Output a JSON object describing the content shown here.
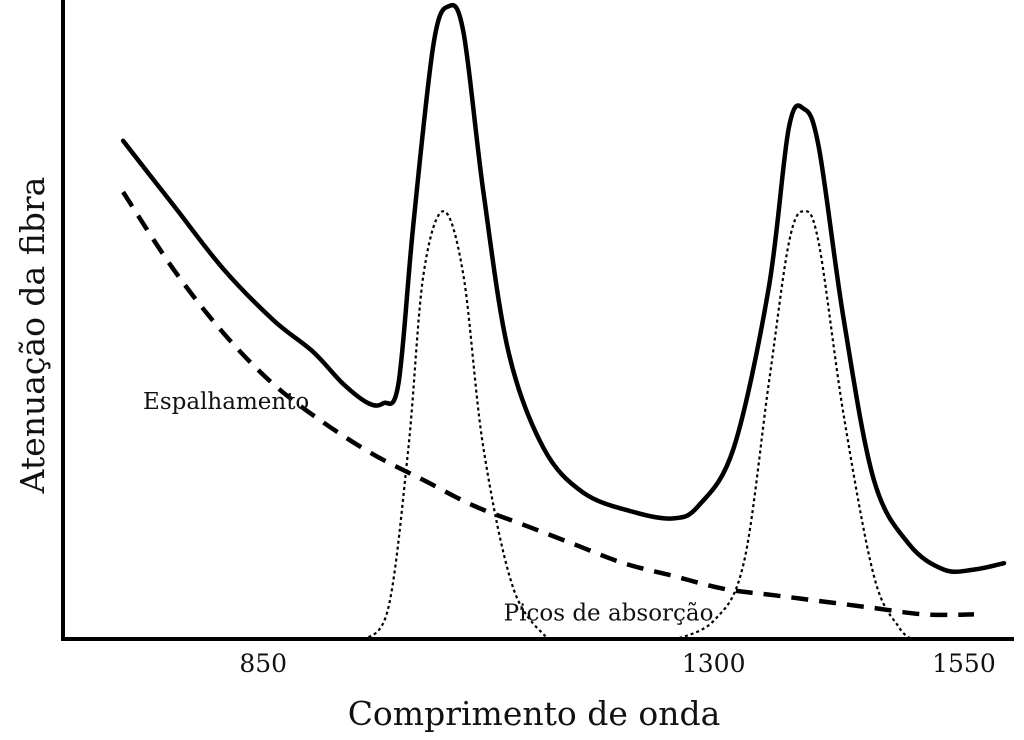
{
  "chart_data": {
    "type": "line",
    "title": "",
    "xlabel": "Comprimento de onda",
    "ylabel": "Atenuação da fibra",
    "x_ticks": [
      {
        "label": "850",
        "x": 850
      },
      {
        "label": "1300",
        "x": 1300
      },
      {
        "label": "1550",
        "x": 1550
      }
    ],
    "xlim": [
      650,
      1600
    ],
    "ylim": [
      0,
      100
    ],
    "grid": false,
    "legend": "none",
    "series": [
      {
        "style": "solid",
        "color": "#000000",
        "points": [
          [
            710,
            78
          ],
          [
            760,
            68
          ],
          [
            810,
            58
          ],
          [
            860,
            50
          ],
          [
            900,
            45
          ],
          [
            930,
            40
          ],
          [
            955,
            37
          ],
          [
            970,
            37
          ],
          [
            985,
            40
          ],
          [
            1000,
            65
          ],
          [
            1020,
            93
          ],
          [
            1035,
            99
          ],
          [
            1050,
            95
          ],
          [
            1070,
            70
          ],
          [
            1095,
            45
          ],
          [
            1130,
            30
          ],
          [
            1170,
            23
          ],
          [
            1220,
            20
          ],
          [
            1260,
            19
          ],
          [
            1285,
            21
          ],
          [
            1320,
            30
          ],
          [
            1355,
            55
          ],
          [
            1375,
            80
          ],
          [
            1390,
            83
          ],
          [
            1405,
            77
          ],
          [
            1430,
            50
          ],
          [
            1460,
            25
          ],
          [
            1495,
            15
          ],
          [
            1530,
            11
          ],
          [
            1560,
            11
          ],
          [
            1590,
            12
          ]
        ]
      },
      {
        "style": "dashed",
        "color": "#000000",
        "points": [
          [
            710,
            70
          ],
          [
            760,
            58
          ],
          [
            810,
            48
          ],
          [
            860,
            40
          ],
          [
            910,
            34
          ],
          [
            960,
            29
          ],
          [
            1010,
            25
          ],
          [
            1060,
            21
          ],
          [
            1110,
            18
          ],
          [
            1160,
            15
          ],
          [
            1210,
            12
          ],
          [
            1260,
            10
          ],
          [
            1310,
            8
          ],
          [
            1360,
            7
          ],
          [
            1410,
            6
          ],
          [
            1460,
            5
          ],
          [
            1510,
            4
          ],
          [
            1560,
            4
          ]
        ]
      },
      {
        "style": "dotted",
        "color": "#000000",
        "points": [
          [
            950,
            0
          ],
          [
            975,
            5
          ],
          [
            995,
            30
          ],
          [
            1010,
            57
          ],
          [
            1030,
            67
          ],
          [
            1050,
            57
          ],
          [
            1070,
            30
          ],
          [
            1100,
            8
          ],
          [
            1135,
            0
          ]
        ]
      },
      {
        "style": "dotted",
        "color": "#000000",
        "points": [
          [
            1260,
            0
          ],
          [
            1300,
            3
          ],
          [
            1330,
            12
          ],
          [
            1355,
            40
          ],
          [
            1375,
            62
          ],
          [
            1390,
            67
          ],
          [
            1405,
            62
          ],
          [
            1430,
            35
          ],
          [
            1460,
            10
          ],
          [
            1485,
            2
          ],
          [
            1500,
            0
          ]
        ]
      }
    ],
    "annotations": [
      {
        "text": "Espalhamento",
        "x": 813,
        "y": 37
      },
      {
        "text": "Picos de absorção",
        "x": 1195,
        "y": 4
      }
    ]
  }
}
